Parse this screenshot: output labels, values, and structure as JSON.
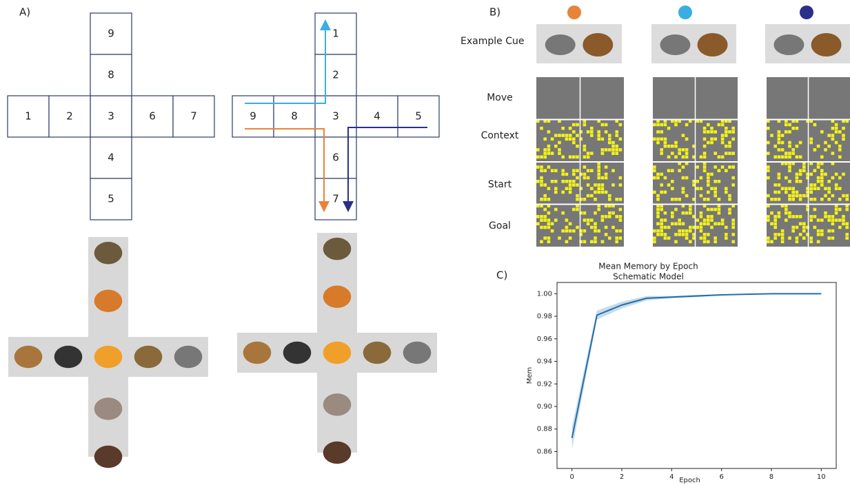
{
  "panel_a": {
    "label": "A)",
    "grid_left": {
      "up": [
        "9",
        "8"
      ],
      "center": "3",
      "down": [
        "4",
        "5"
      ],
      "left": [
        "1",
        "2"
      ],
      "right": [
        "6",
        "7"
      ]
    },
    "grid_right": {
      "up": [
        "1",
        "2"
      ],
      "center": "3",
      "down": [
        "6",
        "7"
      ],
      "left": [
        "9",
        "8"
      ],
      "right": [
        "4",
        "5"
      ]
    }
  },
  "panel_b": {
    "label": "B)",
    "cue_label": "Example Cue",
    "rows": [
      "Move",
      "Context",
      "Start",
      "Goal"
    ],
    "condition_colors": [
      "#e8833a",
      "#3aaee0",
      "#2b2f8a"
    ]
  },
  "panel_c_label": "C)",
  "chart_data": {
    "type": "line",
    "title": "Mean Memory by Epoch",
    "subtitle": "Schematic Model",
    "xlabel": "Epoch",
    "ylabel": "Mem",
    "x": [
      0,
      1,
      2,
      3,
      4,
      5,
      6,
      7,
      8,
      9,
      10
    ],
    "series": [
      {
        "color": "#1f6fad",
        "values": [
          0.872,
          0.981,
          0.99,
          0.996,
          0.997,
          0.998,
          0.999,
          0.9995,
          1.0,
          1.0,
          1.0
        ],
        "band_lower": [
          0.862,
          0.977,
          0.987,
          0.994,
          0.996,
          0.997,
          0.9985,
          0.9992,
          0.9998,
          0.9999,
          0.9999
        ],
        "band_upper": [
          0.882,
          0.985,
          0.993,
          0.998,
          0.998,
          0.999,
          0.9995,
          0.9998,
          1.0,
          1.0,
          1.0
        ]
      }
    ],
    "xlim": [
      -0.6,
      10.6
    ],
    "ylim": [
      0.845,
      1.01
    ],
    "xticks": [
      0,
      2,
      4,
      6,
      8,
      10
    ],
    "yticks": [
      0.86,
      0.88,
      {
        "value": 0.9,
        "label": "0.90"
      },
      0.92,
      0.94,
      0.96,
      0.98,
      {
        "value": 1.0,
        "label": "1.00"
      }
    ]
  }
}
